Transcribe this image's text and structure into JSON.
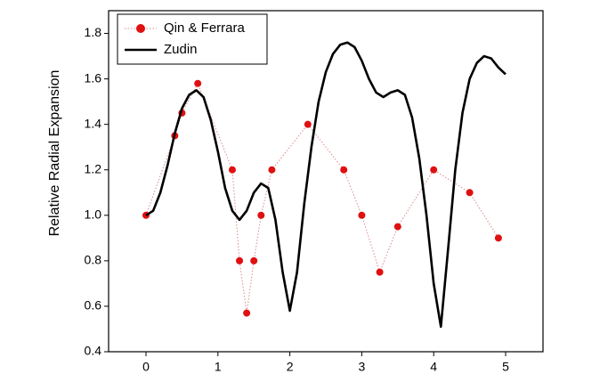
{
  "chart_data": {
    "type": "line",
    "y_label": "Relative Radial Expansion",
    "xlim": [
      -0.52,
      5.52
    ],
    "ylim": [
      0.4,
      1.9
    ],
    "xticks": [
      0,
      1,
      2,
      3,
      4,
      5
    ],
    "yticks": [
      0.4,
      0.6,
      0.8,
      {
        "value": 1,
        "label": "1.0"
      },
      1.2,
      1.4,
      1.6,
      1.8
    ],
    "legend": "top-left",
    "series": [
      {
        "name": "Qin & Ferrara",
        "color": "#e01010",
        "marker": "circle",
        "line_style": "dotted",
        "x": [
          0,
          0.4,
          0.5,
          0.72,
          1.2,
          1.3,
          1.4,
          1.5,
          1.6,
          1.75,
          2.25,
          2.75,
          3.0,
          3.25,
          3.5,
          4.0,
          4.5,
          4.9
        ],
        "values": [
          1.0,
          1.35,
          1.45,
          1.58,
          1.2,
          0.8,
          0.57,
          0.8,
          1.0,
          1.2,
          1.4,
          1.2,
          1.0,
          0.75,
          0.95,
          1.2,
          1.1,
          0.9
        ]
      },
      {
        "name": "Zudin",
        "color": "#000000",
        "line_style": "solid",
        "x": [
          0,
          0.1,
          0.2,
          0.3,
          0.4,
          0.5,
          0.6,
          0.7,
          0.8,
          0.9,
          1.0,
          1.1,
          1.2,
          1.3,
          1.4,
          1.5,
          1.6,
          1.7,
          1.8,
          1.9,
          2.0,
          2.1,
          2.2,
          2.3,
          2.4,
          2.5,
          2.6,
          2.7,
          2.8,
          2.9,
          3.0,
          3.1,
          3.2,
          3.3,
          3.4,
          3.5,
          3.6,
          3.7,
          3.8,
          3.9,
          4.0,
          4.1,
          4.2,
          4.3,
          4.4,
          4.5,
          4.6,
          4.7,
          4.8,
          4.9,
          5.0
        ],
        "values": [
          1.0,
          1.02,
          1.1,
          1.22,
          1.36,
          1.47,
          1.53,
          1.55,
          1.52,
          1.42,
          1.28,
          1.12,
          1.02,
          0.98,
          1.02,
          1.1,
          1.14,
          1.12,
          0.98,
          0.75,
          0.58,
          0.75,
          1.05,
          1.3,
          1.5,
          1.63,
          1.71,
          1.75,
          1.76,
          1.74,
          1.68,
          1.6,
          1.54,
          1.52,
          1.54,
          1.55,
          1.53,
          1.43,
          1.25,
          1.0,
          0.7,
          0.51,
          0.85,
          1.2,
          1.45,
          1.6,
          1.67,
          1.7,
          1.69,
          1.65,
          1.62
        ]
      }
    ]
  }
}
